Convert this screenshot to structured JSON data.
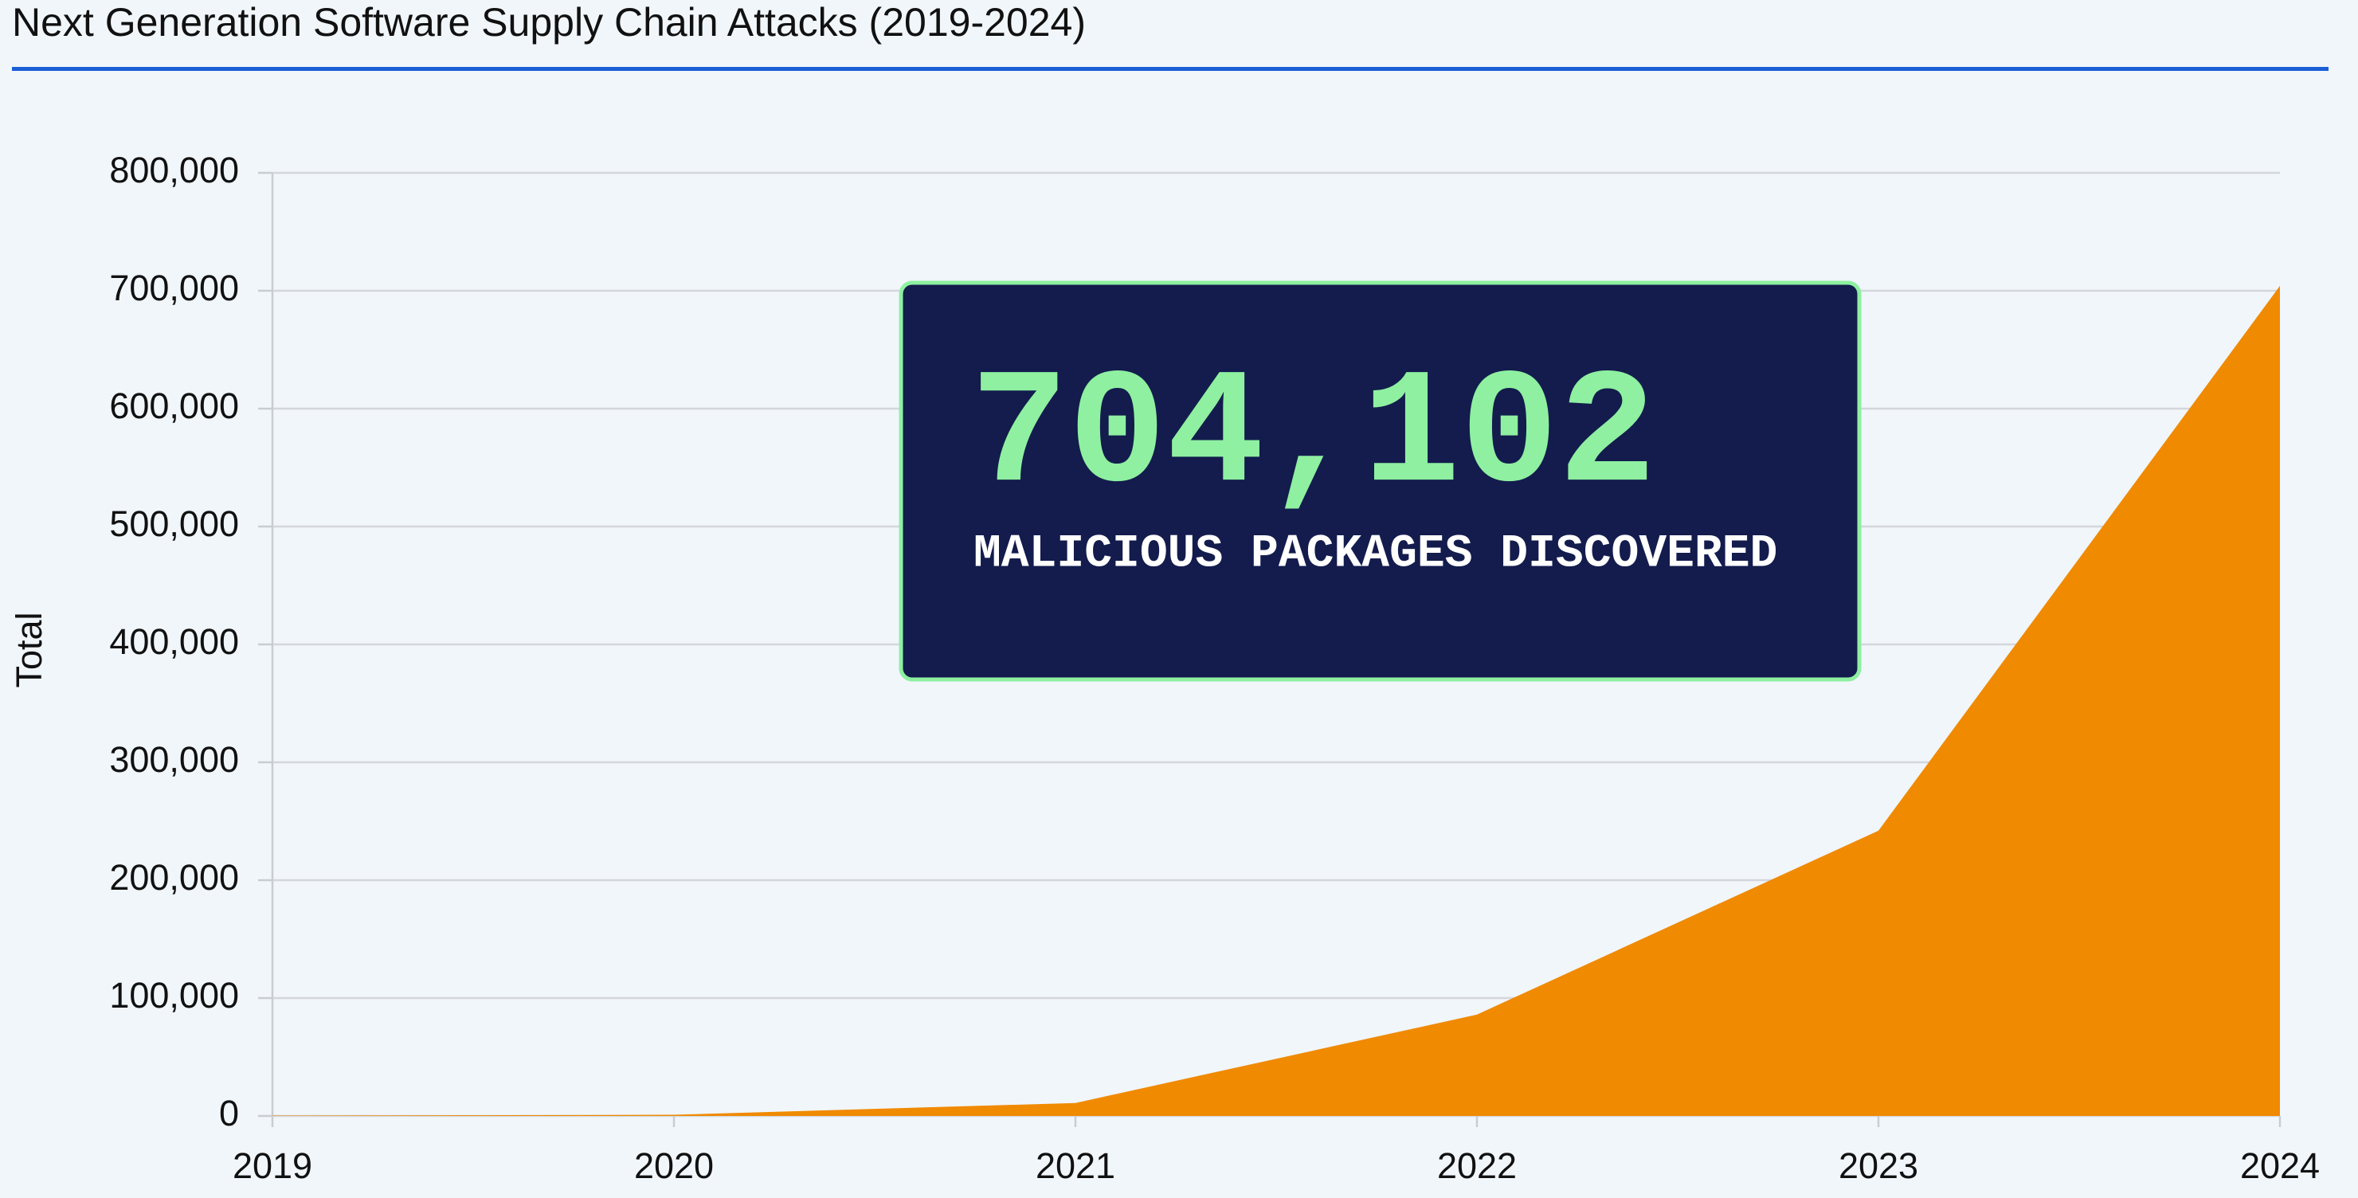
{
  "chart_data": {
    "type": "area",
    "title": "Next Generation Software Supply Chain Attacks (2019-2024)",
    "y_label": "Total",
    "categories": [
      "2019",
      "2020",
      "2021",
      "2022",
      "2023",
      "2024"
    ],
    "values": [
      300,
      1000,
      11000,
      86000,
      242000,
      704102
    ],
    "color": "#f08a00",
    "ylim": [
      0,
      800000
    ],
    "yticks": [
      0,
      {
        "value": 100000,
        "label": "100,000"
      },
      {
        "value": 200000,
        "label": "200,000"
      },
      {
        "value": 300000,
        "label": "300,000"
      },
      {
        "value": 400000,
        "label": "400,000"
      },
      {
        "value": 500000,
        "label": "500,000"
      },
      {
        "value": 600000,
        "label": "600,000"
      },
      {
        "value": 700000,
        "label": "700,000"
      },
      {
        "value": 800000,
        "label": "800,000"
      }
    ],
    "grid": true,
    "annotation": {
      "headline": "704,102",
      "text": "MALICIOUS PACKAGES DISCOVERED"
    }
  }
}
